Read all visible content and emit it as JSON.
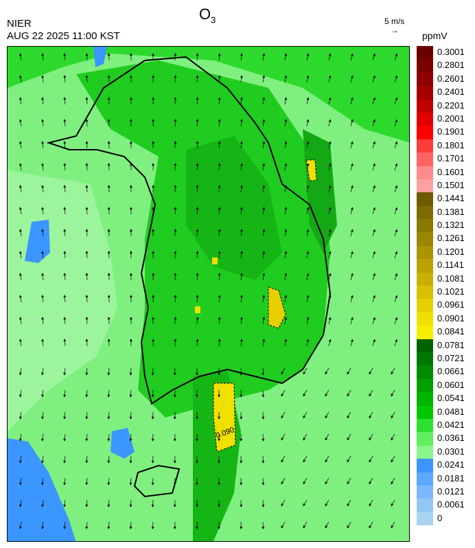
{
  "header": {
    "title_main": "O",
    "title_sub": "3",
    "agency": "NIER",
    "datetime": "AUG 22 2025 11:00 KST",
    "wind_ref_label": "5 m/s",
    "units": "ppmV"
  },
  "map": {
    "contour_label": "0.090",
    "wind_direction": "predominantly southerly/southwesterly over land, northerly/northeasterly arrows in southern seas"
  },
  "colorbar": {
    "labels": [
      "0.3001",
      "0.2801",
      "0.2601",
      "0.2401",
      "0.2201",
      "0.2001",
      "0.1901",
      "0.1801",
      "0.1701",
      "0.1601",
      "0.1501",
      "0.1441",
      "0.1381",
      "0.1321",
      "0.1261",
      "0.1201",
      "0.1141",
      "0.1081",
      "0.1021",
      "0.0961",
      "0.0901",
      "0.0841",
      "0.0781",
      "0.0721",
      "0.0661",
      "0.0601",
      "0.0541",
      "0.0481",
      "0.0421",
      "0.0361",
      "0.0301",
      "0.0241",
      "0.0181",
      "0.0121",
      "0.0061",
      "0"
    ],
    "colors": [
      "#6b0000",
      "#7d0000",
      "#900000",
      "#a50000",
      "#c00000",
      "#e00000",
      "#ff0000",
      "#ff3c3c",
      "#ff6464",
      "#ff8c8c",
      "#ffa0a0",
      "#6e5a00",
      "#7d6a00",
      "#8a7800",
      "#9a8600",
      "#aa9400",
      "#baa200",
      "#c8b000",
      "#d8c000",
      "#e6d000",
      "#f0e000",
      "#f5ee00",
      "#006400",
      "#007800",
      "#008c00",
      "#00a000",
      "#00b400",
      "#00c800",
      "#2ee02e",
      "#5ef05e",
      "#8cf58c",
      "#3c96ff",
      "#5ca8ff",
      "#7cb8ff",
      "#94c8f0",
      "#a8d4f0"
    ]
  }
}
